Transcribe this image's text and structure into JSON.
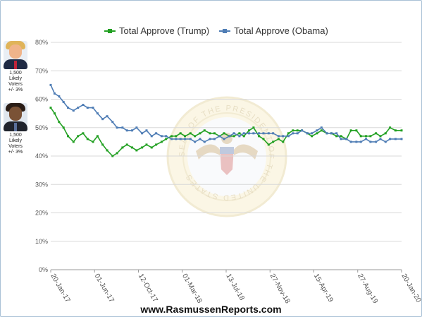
{
  "chart_data": {
    "type": "line",
    "title": "",
    "xlabel": "",
    "ylabel": "",
    "ylim": [
      0,
      80
    ],
    "y_ticks": [
      "0%",
      "10%",
      "20%",
      "30%",
      "40%",
      "50%",
      "60%",
      "70%",
      "80%"
    ],
    "x_ticks": [
      "20-Jan-17",
      "01-Jun-17",
      "12-Oct-17",
      "01-Mar-18",
      "13-Jul-18",
      "27-Nov-18",
      "15-Apr-19",
      "27-Aug-19",
      "20-Jan-20"
    ],
    "grid": true,
    "legend_position": "top",
    "x_range": [
      "2017-01-20",
      "2020-01-20"
    ],
    "series": [
      {
        "name": "Total Approve (Trump)",
        "color": "#22a022",
        "points": [
          [
            "2017-01-20",
            57
          ],
          [
            "2017-02-01",
            55
          ],
          [
            "2017-02-15",
            52
          ],
          [
            "2017-03-01",
            50
          ],
          [
            "2017-03-15",
            47
          ],
          [
            "2017-04-01",
            45
          ],
          [
            "2017-04-15",
            47
          ],
          [
            "2017-05-01",
            48
          ],
          [
            "2017-05-15",
            46
          ],
          [
            "2017-06-01",
            45
          ],
          [
            "2017-06-15",
            47
          ],
          [
            "2017-07-01",
            44
          ],
          [
            "2017-07-15",
            42
          ],
          [
            "2017-08-01",
            40
          ],
          [
            "2017-08-15",
            41
          ],
          [
            "2017-09-01",
            43
          ],
          [
            "2017-09-15",
            44
          ],
          [
            "2017-10-01",
            43
          ],
          [
            "2017-10-15",
            42
          ],
          [
            "2017-11-01",
            43
          ],
          [
            "2017-11-15",
            44
          ],
          [
            "2017-12-01",
            43
          ],
          [
            "2017-12-15",
            44
          ],
          [
            "2018-01-01",
            45
          ],
          [
            "2018-01-15",
            46
          ],
          [
            "2018-02-01",
            47
          ],
          [
            "2018-02-15",
            47
          ],
          [
            "2018-03-01",
            48
          ],
          [
            "2018-03-15",
            47
          ],
          [
            "2018-04-01",
            48
          ],
          [
            "2018-04-15",
            47
          ],
          [
            "2018-05-01",
            48
          ],
          [
            "2018-05-15",
            49
          ],
          [
            "2018-06-01",
            48
          ],
          [
            "2018-06-15",
            48
          ],
          [
            "2018-07-01",
            47
          ],
          [
            "2018-07-15",
            48
          ],
          [
            "2018-08-01",
            47
          ],
          [
            "2018-08-15",
            47
          ],
          [
            "2018-09-01",
            48
          ],
          [
            "2018-09-15",
            47
          ],
          [
            "2018-10-01",
            49
          ],
          [
            "2018-10-15",
            50
          ],
          [
            "2018-11-01",
            47
          ],
          [
            "2018-11-15",
            46
          ],
          [
            "2018-12-01",
            44
          ],
          [
            "2018-12-15",
            45
          ],
          [
            "2019-01-01",
            46
          ],
          [
            "2019-01-15",
            45
          ],
          [
            "2019-02-01",
            48
          ],
          [
            "2019-02-15",
            49
          ],
          [
            "2019-03-01",
            49
          ],
          [
            "2019-03-15",
            49
          ],
          [
            "2019-04-01",
            48
          ],
          [
            "2019-04-15",
            47
          ],
          [
            "2019-05-01",
            48
          ],
          [
            "2019-05-15",
            49
          ],
          [
            "2019-06-01",
            48
          ],
          [
            "2019-06-15",
            48
          ],
          [
            "2019-07-01",
            47
          ],
          [
            "2019-07-15",
            47
          ],
          [
            "2019-08-01",
            46
          ],
          [
            "2019-08-15",
            49
          ],
          [
            "2019-09-01",
            49
          ],
          [
            "2019-09-15",
            47
          ],
          [
            "2019-10-01",
            47
          ],
          [
            "2019-10-15",
            47
          ],
          [
            "2019-11-01",
            48
          ],
          [
            "2019-11-15",
            47
          ],
          [
            "2019-12-01",
            48
          ],
          [
            "2019-12-15",
            50
          ],
          [
            "2020-01-01",
            49
          ],
          [
            "2020-01-20",
            49
          ]
        ]
      },
      {
        "name": "Total Approve (Obama)",
        "color": "#4f7db5",
        "points": [
          [
            "2017-01-20",
            65
          ],
          [
            "2017-02-01",
            62
          ],
          [
            "2017-02-15",
            61
          ],
          [
            "2017-03-01",
            59
          ],
          [
            "2017-03-15",
            57
          ],
          [
            "2017-04-01",
            56
          ],
          [
            "2017-04-15",
            57
          ],
          [
            "2017-05-01",
            58
          ],
          [
            "2017-05-15",
            57
          ],
          [
            "2017-06-01",
            57
          ],
          [
            "2017-06-15",
            55
          ],
          [
            "2017-07-01",
            53
          ],
          [
            "2017-07-15",
            54
          ],
          [
            "2017-08-01",
            52
          ],
          [
            "2017-08-15",
            50
          ],
          [
            "2017-09-01",
            50
          ],
          [
            "2017-09-15",
            49
          ],
          [
            "2017-10-01",
            49
          ],
          [
            "2017-10-15",
            50
          ],
          [
            "2017-11-01",
            48
          ],
          [
            "2017-11-15",
            49
          ],
          [
            "2017-12-01",
            47
          ],
          [
            "2017-12-15",
            48
          ],
          [
            "2018-01-01",
            47
          ],
          [
            "2018-01-15",
            47
          ],
          [
            "2018-02-01",
            46
          ],
          [
            "2018-02-15",
            46
          ],
          [
            "2018-03-01",
            46
          ],
          [
            "2018-03-15",
            46
          ],
          [
            "2018-04-01",
            46
          ],
          [
            "2018-04-15",
            45
          ],
          [
            "2018-05-01",
            46
          ],
          [
            "2018-05-15",
            45
          ],
          [
            "2018-06-01",
            46
          ],
          [
            "2018-06-15",
            46
          ],
          [
            "2018-07-01",
            47
          ],
          [
            "2018-07-15",
            46
          ],
          [
            "2018-08-01",
            47
          ],
          [
            "2018-08-15",
            48
          ],
          [
            "2018-09-01",
            47
          ],
          [
            "2018-09-15",
            48
          ],
          [
            "2018-10-01",
            48
          ],
          [
            "2018-10-15",
            48
          ],
          [
            "2018-11-01",
            48
          ],
          [
            "2018-11-15",
            48
          ],
          [
            "2018-12-01",
            48
          ],
          [
            "2018-12-15",
            48
          ],
          [
            "2019-01-01",
            47
          ],
          [
            "2019-01-15",
            47
          ],
          [
            "2019-02-01",
            47
          ],
          [
            "2019-02-15",
            48
          ],
          [
            "2019-03-01",
            48
          ],
          [
            "2019-03-15",
            49
          ],
          [
            "2019-04-01",
            48
          ],
          [
            "2019-04-15",
            48
          ],
          [
            "2019-05-01",
            49
          ],
          [
            "2019-05-15",
            50
          ],
          [
            "2019-06-01",
            48
          ],
          [
            "2019-06-15",
            48
          ],
          [
            "2019-07-01",
            48
          ],
          [
            "2019-07-15",
            46
          ],
          [
            "2019-08-01",
            46
          ],
          [
            "2019-08-15",
            45
          ],
          [
            "2019-09-01",
            45
          ],
          [
            "2019-09-15",
            45
          ],
          [
            "2019-10-01",
            46
          ],
          [
            "2019-10-15",
            45
          ],
          [
            "2019-11-01",
            45
          ],
          [
            "2019-11-15",
            46
          ],
          [
            "2019-12-01",
            45
          ],
          [
            "2019-12-15",
            46
          ],
          [
            "2020-01-01",
            46
          ],
          [
            "2020-01-20",
            46
          ]
        ]
      }
    ]
  },
  "sidebar": {
    "trump_caption": [
      "1,500 Likely",
      "Voters",
      "+/- 3%"
    ],
    "obama_caption": [
      "1,500 Likely",
      "Voters",
      "+/- 3%"
    ]
  },
  "footer": {
    "site": "www.RasmussenReports.com"
  },
  "watermark": {
    "text": "SEAL OF THE PRESIDENT OF THE UNITED STATES"
  }
}
